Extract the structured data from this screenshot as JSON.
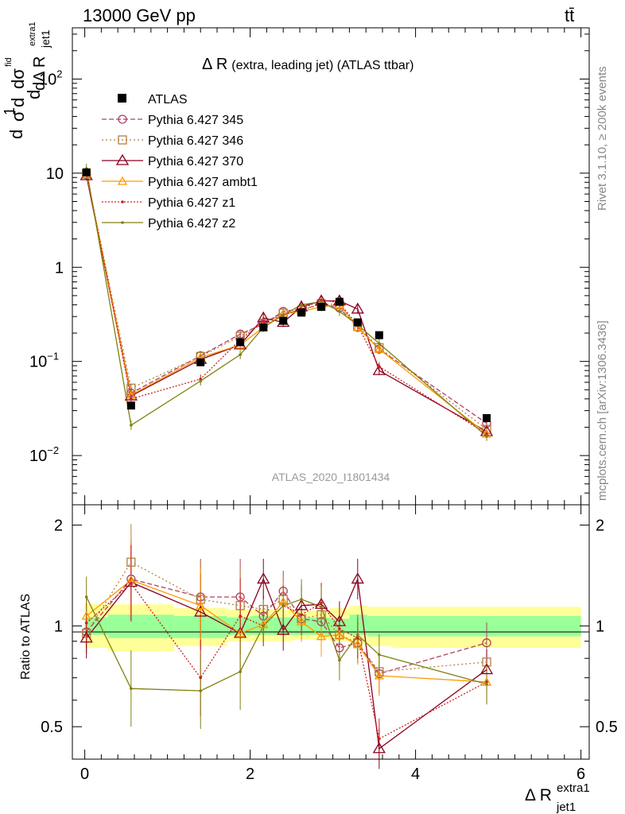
{
  "header": {
    "left": "13000 GeV pp",
    "right": "tt̄"
  },
  "side_labels": {
    "rivet": "Rivet 3.1.10, ≥ 200k events",
    "mcplots": "mcplots.cern.ch [arXiv:1306.3436]"
  },
  "colors": {
    "band_inner": "#99ff99",
    "band_outer": "#ffff99",
    "data": "#000000"
  },
  "chart_data": [
    {
      "type": "line",
      "panel": "main",
      "title": "Δ R (extra, leading jet) (ATLAS ttbar)",
      "title_main": "Δ R",
      "title_rest": "(extra, leading jet) (ATLAS ttbar)",
      "ylabel": "(1/σ) dσ/dΔR_jet1^extra1",
      "ylabel_top": "dσ",
      "ylabel_top_sup": "fid",
      "ylabel_den": "dΔ R",
      "ylabel_den_sub": "jet1",
      "ylabel_den_supsub": "extra1",
      "ylabel_frac": "1",
      "ylabel_sigma": "σ",
      "ylabel_d": "d",
      "yscale": "log",
      "xlim": [
        -0.15,
        6.1
      ],
      "ylim": [
        0.003,
        350
      ],
      "yticks": [
        {
          "value": 0.01,
          "base": "10",
          "exp": "−2"
        },
        {
          "value": 0.1,
          "base": "10",
          "exp": "−1"
        },
        {
          "value": 1,
          "base": "1",
          "exp": ""
        },
        {
          "value": 10,
          "base": "10",
          "exp": ""
        },
        {
          "value": 100,
          "base": "10",
          "exp": "2"
        }
      ],
      "watermark": "ATLAS_2020_I1801434",
      "x": [
        0.02,
        0.56,
        1.4,
        1.88,
        2.16,
        2.4,
        2.62,
        2.86,
        3.08,
        3.3,
        3.56,
        4.86
      ],
      "data": {
        "name": "ATLAS",
        "values": [
          10.2,
          0.034,
          0.098,
          0.16,
          0.23,
          0.27,
          0.33,
          0.38,
          0.43,
          0.26,
          0.19,
          0.025
        ]
      },
      "series": [
        {
          "name": "Pythia 6.427 345",
          "color": "#b04060",
          "dash": "6,3",
          "marker": "circle",
          "values": [
            9.6,
            0.046,
            0.115,
            0.195,
            0.25,
            0.34,
            0.36,
            0.4,
            0.37,
            0.23,
            0.135,
            0.022
          ]
        },
        {
          "name": "Pythia 6.427 346",
          "color": "#b08040",
          "dash": "2,3",
          "marker": "square",
          "values": [
            9.8,
            0.052,
            0.113,
            0.185,
            0.255,
            0.325,
            0.35,
            0.41,
            0.4,
            0.235,
            0.14,
            0.019
          ]
        },
        {
          "name": "Pythia 6.427 370",
          "color": "#8b0020",
          "dash": "",
          "marker": "triangle",
          "values": [
            9.4,
            0.043,
            0.105,
            0.15,
            0.29,
            0.26,
            0.38,
            0.44,
            0.44,
            0.36,
            0.08,
            0.018
          ]
        },
        {
          "name": "Pythia 6.427 ambt1",
          "color": "#ff9900",
          "dash": "",
          "marker": "triangle-small",
          "values": [
            10.0,
            0.044,
            0.11,
            0.15,
            0.23,
            0.32,
            0.34,
            0.38,
            0.4,
            0.23,
            0.135,
            0.017
          ]
        },
        {
          "name": "Pythia 6.427 z1",
          "color": "#cc2020",
          "dash": "2,2",
          "marker": "dot",
          "values": [
            10.1,
            0.04,
            0.065,
            0.17,
            0.265,
            0.31,
            0.36,
            0.45,
            0.42,
            0.24,
            0.088,
            0.017
          ]
        },
        {
          "name": "Pythia 6.427 z2",
          "color": "#808010",
          "dash": "",
          "marker": "dot",
          "values": [
            11.2,
            0.021,
            0.062,
            0.118,
            0.23,
            0.31,
            0.4,
            0.43,
            0.34,
            0.245,
            0.155,
            0.016
          ]
        }
      ]
    },
    {
      "type": "line",
      "panel": "ratio",
      "ylabel": "Ratio to ATLAS",
      "xlabel": "Δ R_jet1^extra1",
      "xlabel_main": "Δ R",
      "xlabel_sub": "jet1",
      "xlabel_sup": "extra1",
      "yscale": "log",
      "xlim": [
        -0.15,
        6.1
      ],
      "ylim": [
        0.4,
        2.3
      ],
      "yticks": [
        {
          "value": 0.5,
          "label": "0.5"
        },
        {
          "value": 1,
          "label": "1"
        },
        {
          "value": 2,
          "label": "2"
        }
      ],
      "xticks": [
        {
          "value": 0,
          "label": "0"
        },
        {
          "value": 2,
          "label": "2"
        },
        {
          "value": 4,
          "label": "4"
        },
        {
          "value": 6,
          "label": "6"
        }
      ],
      "bins": [
        0,
        0.28,
        1.08,
        1.72,
        2.0,
        2.28,
        2.52,
        2.72,
        2.96,
        3.2,
        3.42,
        3.72,
        6.0
      ],
      "band_inner": [
        [
          0.94,
          1.06
        ],
        [
          0.92,
          1.08
        ],
        [
          0.92,
          1.07
        ],
        [
          0.94,
          1.06
        ],
        [
          0.94,
          1.07
        ],
        [
          0.94,
          1.06
        ],
        [
          0.94,
          1.06
        ],
        [
          0.94,
          1.06
        ],
        [
          0.95,
          1.05
        ],
        [
          0.94,
          1.08
        ],
        [
          0.93,
          1.07
        ],
        [
          0.93,
          1.07
        ]
      ],
      "band_outer": [
        [
          0.86,
          1.16
        ],
        [
          0.84,
          1.16
        ],
        [
          0.87,
          1.13
        ],
        [
          0.9,
          1.12
        ],
        [
          0.9,
          1.12
        ],
        [
          0.9,
          1.12
        ],
        [
          0.91,
          1.11
        ],
        [
          0.91,
          1.11
        ],
        [
          0.9,
          1.13
        ],
        [
          0.88,
          1.15
        ],
        [
          0.87,
          1.14
        ],
        [
          0.86,
          1.14
        ]
      ],
      "x": [
        0.02,
        0.56,
        1.4,
        1.88,
        2.16,
        2.4,
        2.62,
        2.86,
        3.08,
        3.3,
        3.56,
        4.86
      ],
      "series": [
        {
          "name": "Pythia 6.427 345",
          "values": [
            0.96,
            1.38,
            1.22,
            1.22,
            1.07,
            1.27,
            1.05,
            1.03,
            0.86,
            0.89,
            0.72,
            0.89
          ]
        },
        {
          "name": "Pythia 6.427 346",
          "values": [
            0.95,
            1.55,
            1.2,
            1.15,
            1.12,
            1.2,
            1.05,
            1.08,
            0.94,
            0.89,
            0.73,
            0.78
          ]
        },
        {
          "name": "Pythia 6.427 370",
          "values": [
            0.92,
            1.35,
            1.1,
            0.95,
            1.38,
            0.97,
            1.15,
            1.16,
            1.03,
            1.38,
            0.43,
            0.74
          ]
        },
        {
          "name": "Pythia 6.427 ambt1",
          "values": [
            1.07,
            1.37,
            1.15,
            0.95,
            1.01,
            1.18,
            1.03,
            0.93,
            0.94,
            0.88,
            0.71,
            0.68
          ]
        },
        {
          "name": "Pythia 6.427 z1",
          "values": [
            1.02,
            1.34,
            0.7,
            1.07,
            1.0,
            1.15,
            1.08,
            1.17,
            0.98,
            0.92,
            0.46,
            0.68
          ]
        },
        {
          "name": "Pythia 6.427 z2",
          "values": [
            1.22,
            0.65,
            0.64,
            0.73,
            1.0,
            1.15,
            1.2,
            1.14,
            0.79,
            0.94,
            0.82,
            0.67
          ]
        }
      ]
    }
  ]
}
